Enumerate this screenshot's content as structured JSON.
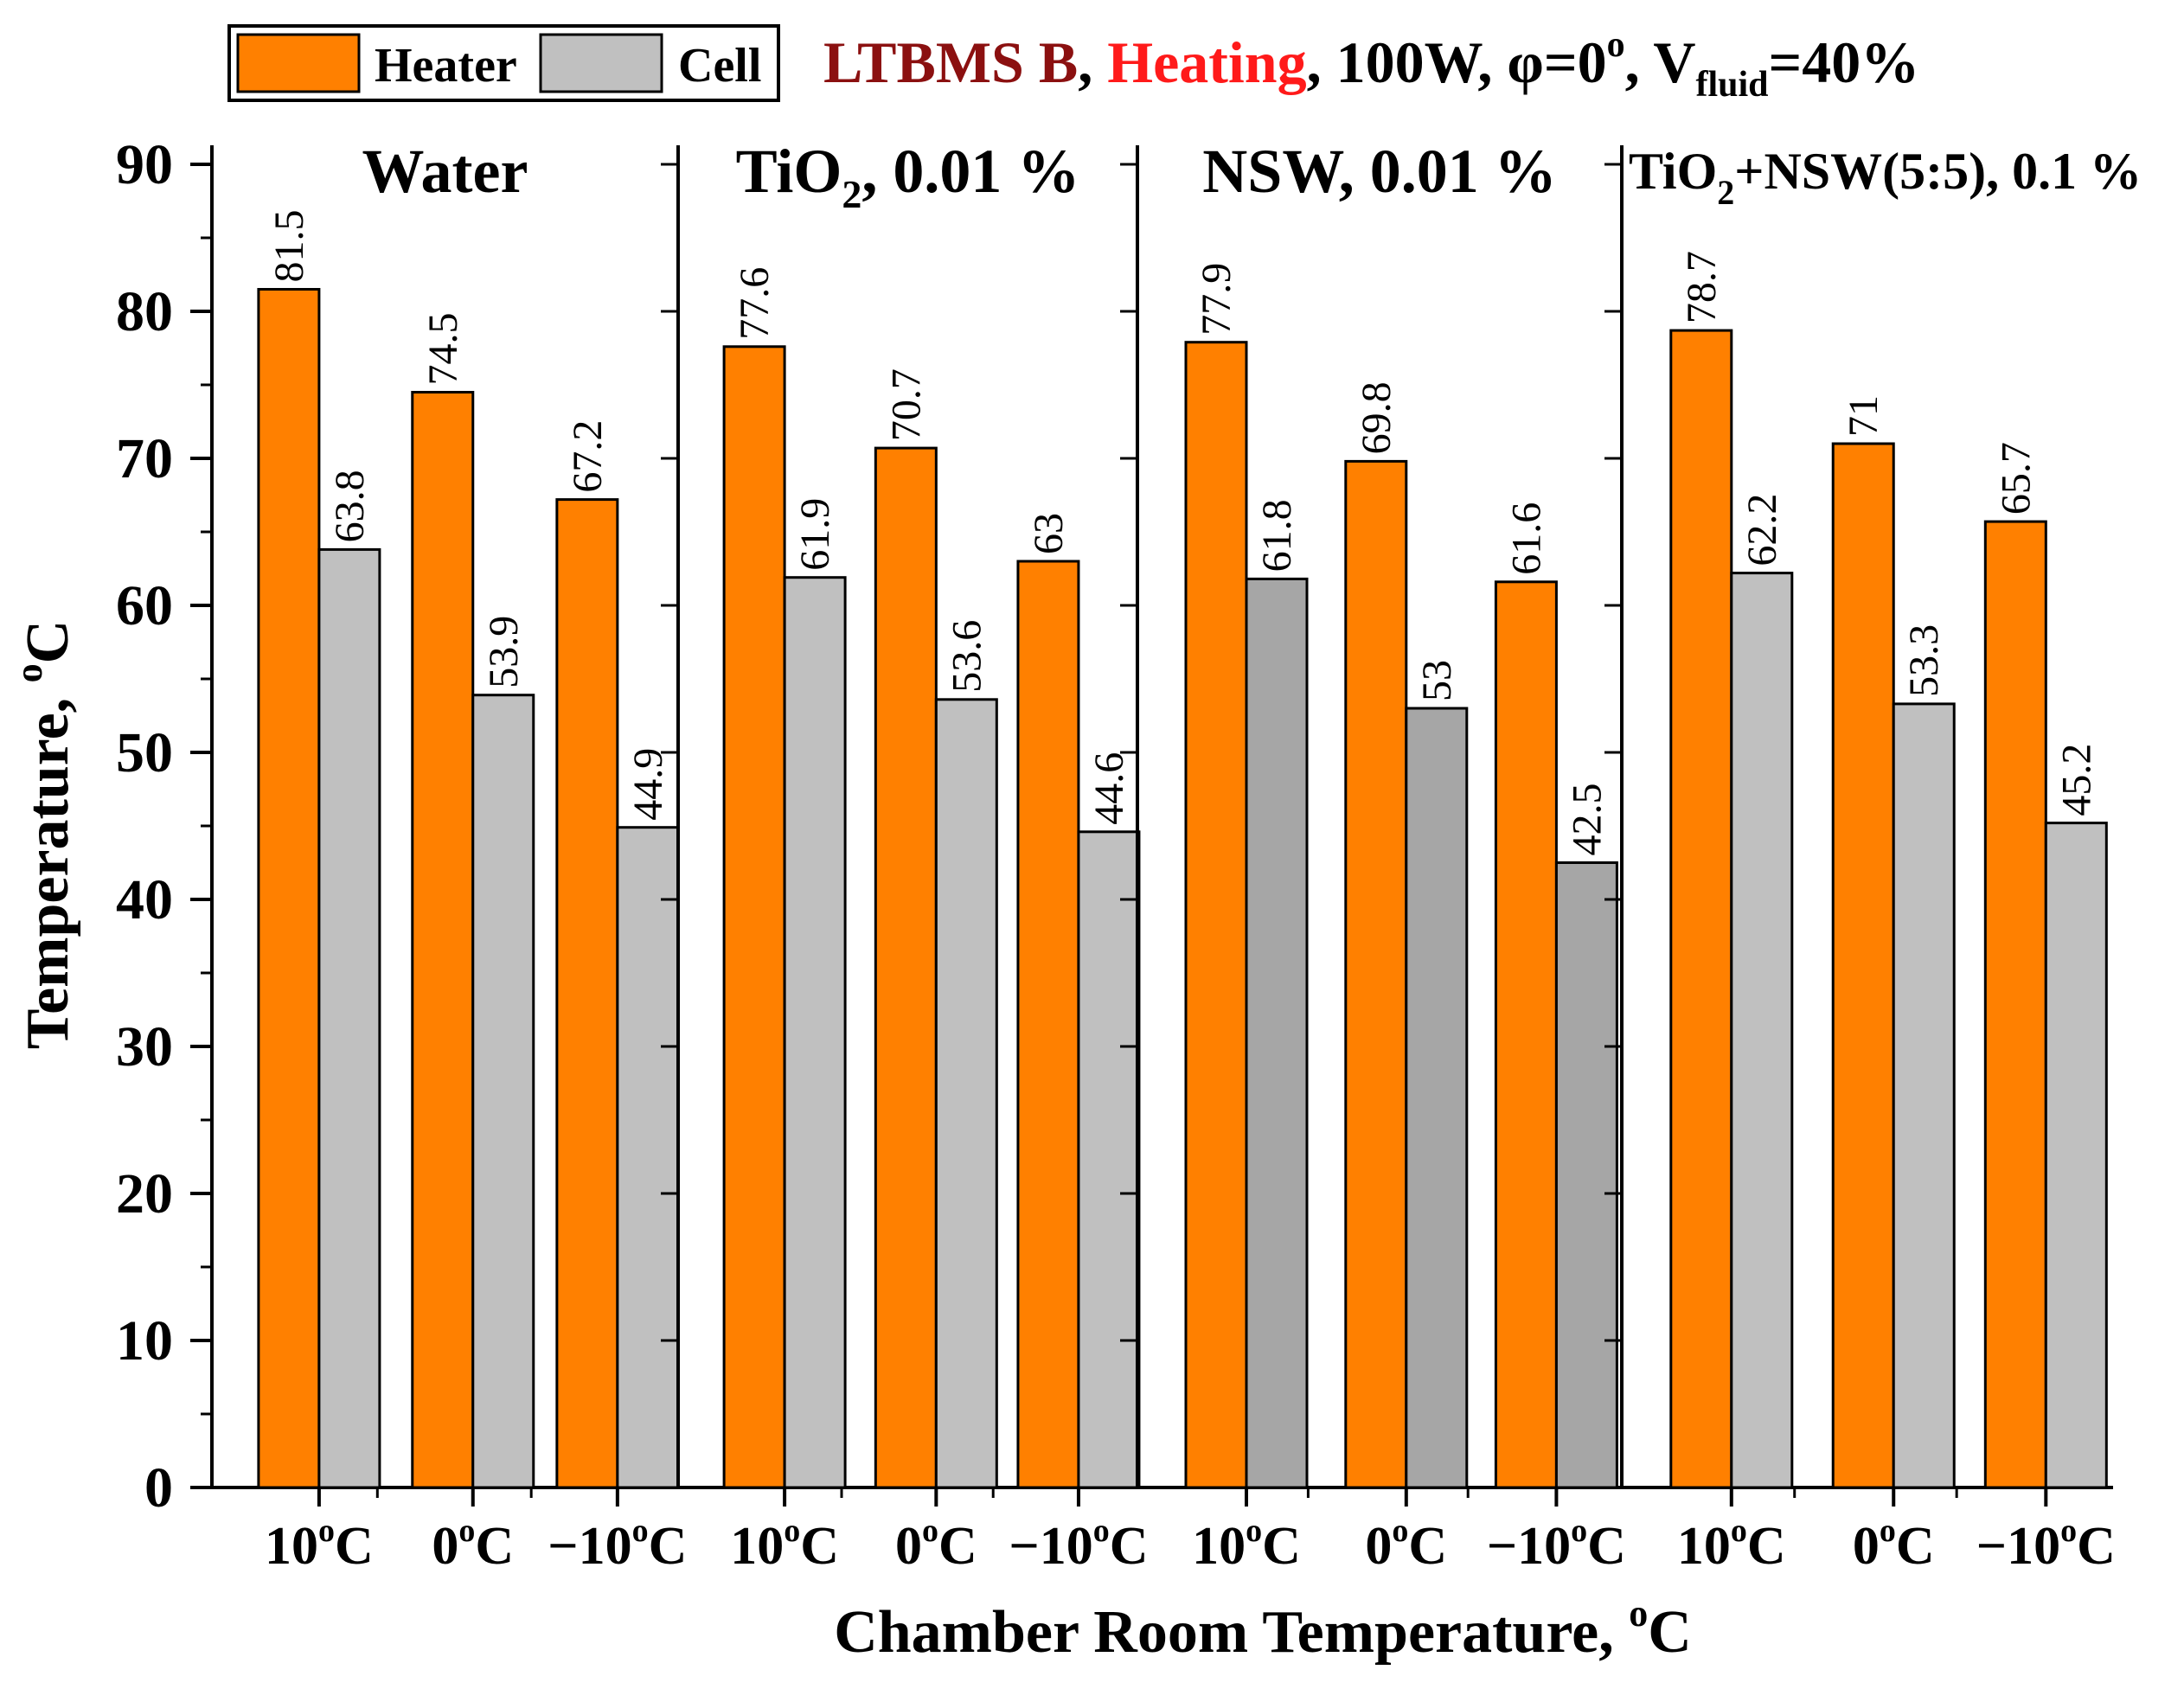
{
  "chart_data": {
    "type": "bar",
    "title": {
      "part1": "LTBMS B",
      "sep1": ", ",
      "part2": "Heating",
      "part3": ", 100W, φ=0",
      "deg": "o",
      "part4": ", V",
      "sub": "fluid",
      "part5": "=40%"
    },
    "colors": {
      "title_dark_red": "#8b1010",
      "title_red": "#ff1a1a",
      "heater": "#ff8000",
      "cell": "#c0c0c0",
      "cell_dark": "#a6a6a6"
    },
    "legend": [
      {
        "name": "Heater",
        "color": "#ff8000"
      },
      {
        "name": "Cell",
        "color": "#c0c0c0"
      }
    ],
    "ylabel": {
      "main": "Temperature, ",
      "sup": "o",
      "unit": "C"
    },
    "xlabel": {
      "main": "Chamber Room Temperature, ",
      "sup": "o",
      "unit": "C"
    },
    "ylim": [
      0,
      90
    ],
    "yticks": [
      "0",
      "10",
      "20",
      "30",
      "40",
      "50",
      "60",
      "70",
      "80",
      "90"
    ],
    "categories": [
      {
        "num": "10",
        "sup": "o",
        "unit": "C"
      },
      {
        "num": "0",
        "sup": "o",
        "unit": "C"
      },
      {
        "num": "−10",
        "sup": "o",
        "unit": "C"
      }
    ],
    "panels": [
      {
        "title": {
          "a": "Water",
          "sub": "",
          "b": ""
        },
        "title_size": "large",
        "cell_color": "#c0c0c0",
        "series": [
          {
            "name": "Heater",
            "values": [
              81.5,
              74.5,
              67.2
            ],
            "labels": [
              "81.5",
              "74.5",
              "67.2"
            ]
          },
          {
            "name": "Cell",
            "values": [
              63.8,
              53.9,
              44.9
            ],
            "labels": [
              "63.8",
              "53.9",
              "44.9"
            ]
          }
        ]
      },
      {
        "title": {
          "a": "TiO",
          "sub": "2",
          "b": ", 0.01 %"
        },
        "title_size": "large",
        "cell_color": "#c0c0c0",
        "series": [
          {
            "name": "Heater",
            "values": [
              77.6,
              70.7,
              63
            ],
            "labels": [
              "77.6",
              "70.7",
              "63"
            ]
          },
          {
            "name": "Cell",
            "values": [
              61.9,
              53.6,
              44.6
            ],
            "labels": [
              "61.9",
              "53.6",
              "44.6"
            ]
          }
        ]
      },
      {
        "title": {
          "a": "NSW, 0.01 %",
          "sub": "",
          "b": ""
        },
        "title_size": "large",
        "cell_color": "#a6a6a6",
        "series": [
          {
            "name": "Heater",
            "values": [
              77.9,
              69.8,
              61.6
            ],
            "labels": [
              "77.9",
              "69.8",
              "61.6"
            ]
          },
          {
            "name": "Cell",
            "values": [
              61.8,
              53,
              42.5
            ],
            "labels": [
              "61.8",
              "53",
              "42.5"
            ]
          }
        ]
      },
      {
        "title": {
          "a": "TiO",
          "sub": "2",
          "b": "+NSW(5:5), 0.1 %"
        },
        "title_size": "small",
        "cell_color": "#c0c0c0",
        "series": [
          {
            "name": "Heater",
            "values": [
              78.7,
              71,
              65.7
            ],
            "labels": [
              "78.7",
              "71",
              "65.7"
            ]
          },
          {
            "name": "Cell",
            "values": [
              62.2,
              53.3,
              45.2
            ],
            "labels": [
              "62.2",
              "53.3",
              "45.2"
            ]
          }
        ]
      }
    ]
  }
}
